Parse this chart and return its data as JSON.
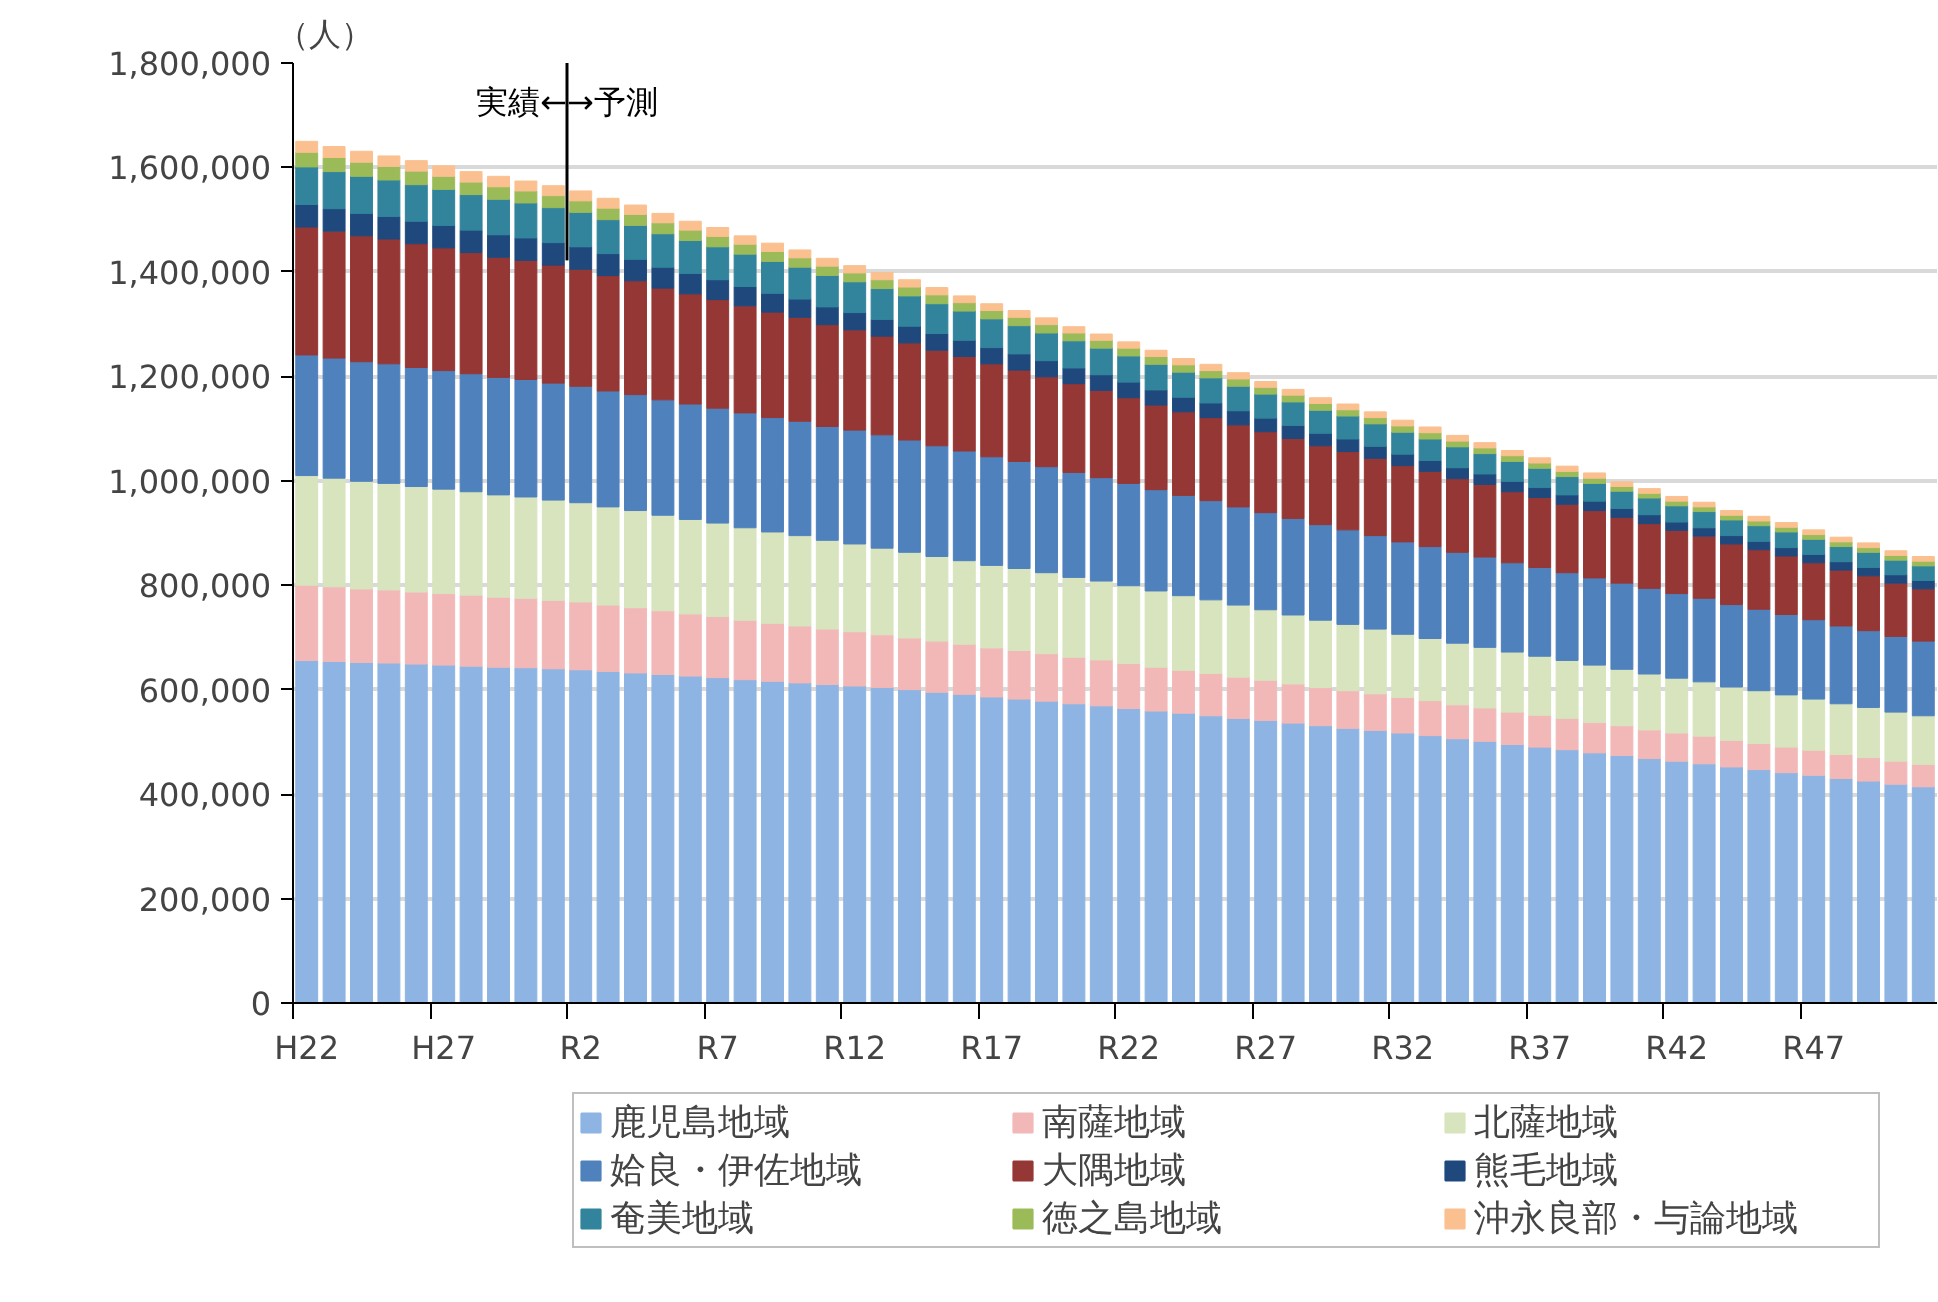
{
  "chart_data": {
    "type": "bar",
    "stacked": true,
    "ylabel": "（人）",
    "categories": [
      "H22",
      null,
      null,
      null,
      null,
      "H27",
      null,
      null,
      null,
      null,
      "R2",
      null,
      null,
      null,
      null,
      "R7",
      null,
      null,
      null,
      null,
      "R12",
      null,
      null,
      null,
      null,
      "R17",
      null,
      null,
      null,
      null,
      "R22",
      null,
      null,
      null,
      null,
      "R27",
      null,
      null,
      null,
      null,
      "R32",
      null,
      null,
      null,
      null,
      "R37",
      null,
      null,
      null,
      null,
      "R42",
      null,
      null,
      null,
      null,
      "R47",
      null,
      null,
      null,
      null
    ],
    "ylim": [
      0,
      1800000
    ],
    "yticks": [
      {
        "value": 0,
        "label": "0"
      },
      {
        "value": 200000,
        "label": "200,000"
      },
      {
        "value": 400000,
        "label": "400,000"
      },
      {
        "value": 600000,
        "label": "600,000"
      },
      {
        "value": 800000,
        "label": "800,000"
      },
      {
        "value": 1000000,
        "label": "1,000,000"
      },
      {
        "value": 1200000,
        "label": "1,200,000"
      },
      {
        "value": 1400000,
        "label": "1,400,000"
      },
      {
        "value": 1600000,
        "label": "1,600,000"
      },
      {
        "value": 1800000,
        "label": "1,800,000"
      }
    ],
    "grid": "y",
    "legend": "bottom",
    "ref_lines": [
      {
        "axis": "x",
        "value": "R2",
        "label": "実績←→予測",
        "color": "#000000"
      }
    ],
    "series": [
      {
        "name": "鹿児島地域",
        "color": "#8db4e2",
        "values": [
          656000,
          654000,
          652000,
          651000,
          649000,
          647000,
          645000,
          643000,
          642000,
          640000,
          638000,
          635000,
          632000,
          629000,
          626000,
          623000,
          619000,
          616000,
          613000,
          610000,
          607000,
          604000,
          600000,
          595000,
          591000,
          586000,
          582000,
          578000,
          573000,
          569000,
          564000,
          559000,
          555000,
          550000,
          545000,
          541000,
          536000,
          531000,
          526000,
          522000,
          517000,
          512000,
          506000,
          501000,
          495000,
          490000,
          485000,
          479000,
          474000,
          468000,
          463000,
          458000,
          452000,
          447000,
          441000,
          436000,
          430000,
          425000,
          419000,
          414000
        ]
      },
      {
        "name": "南薩地域",
        "color": "#f2b8b8",
        "values": [
          144000,
          143000,
          141000,
          140000,
          138000,
          137000,
          136000,
          134000,
          133000,
          131000,
          130000,
          127000,
          125000,
          122000,
          119000,
          117000,
          114000,
          111000,
          109000,
          106000,
          104000,
          101000,
          99000,
          98000,
          96000,
          94000,
          93000,
          91000,
          89000,
          88000,
          86000,
          84000,
          82000,
          81000,
          79000,
          77000,
          75000,
          73000,
          72000,
          70000,
          68000,
          67000,
          65000,
          64000,
          62000,
          61000,
          60000,
          58000,
          57000,
          55000,
          54000,
          53000,
          51000,
          50000,
          49000,
          48000,
          46000,
          45000,
          44000,
          43000
        ]
      },
      {
        "name": "北薩地域",
        "color": "#d7e4bd",
        "values": [
          210000,
          208000,
          206000,
          204000,
          202000,
          200000,
          198000,
          196000,
          194000,
          192000,
          190000,
          188000,
          186000,
          183000,
          181000,
          179000,
          177000,
          175000,
          173000,
          170000,
          168000,
          166000,
          164000,
          162000,
          160000,
          158000,
          157000,
          155000,
          153000,
          151000,
          149000,
          146000,
          143000,
          141000,
          138000,
          135000,
          132000,
          129000,
          127000,
          124000,
          121000,
          119000,
          118000,
          116000,
          115000,
          113000,
          111000,
          110000,
          108000,
          107000,
          105000,
          104000,
          102000,
          101000,
          100000,
          98000,
          97000,
          96000,
          94000,
          93000
        ]
      },
      {
        "name": "姶良・伊佐地域",
        "color": "#4f81bd",
        "values": [
          231000,
          230000,
          229000,
          229000,
          228000,
          227000,
          226000,
          225000,
          225000,
          224000,
          223000,
          222000,
          222000,
          221000,
          221000,
          220000,
          220000,
          219000,
          219000,
          218000,
          218000,
          217000,
          215000,
          212000,
          210000,
          208000,
          205000,
          203000,
          201000,
          198000,
          196000,
          194000,
          192000,
          190000,
          188000,
          186000,
          185000,
          183000,
          181000,
          179000,
          177000,
          176000,
          174000,
          173000,
          171000,
          170000,
          168000,
          167000,
          165000,
          164000,
          162000,
          160000,
          158000,
          156000,
          154000,
          152000,
          149000,
          147000,
          145000,
          143000
        ]
      },
      {
        "name": "大隅地域",
        "color": "#953735",
        "values": [
          245000,
          243000,
          241000,
          239000,
          237000,
          235000,
          232000,
          230000,
          228000,
          226000,
          224000,
          221000,
          218000,
          214000,
          211000,
          208000,
          205000,
          202000,
          199000,
          195000,
          192000,
          189000,
          186000,
          183000,
          181000,
          178000,
          175000,
          172000,
          170000,
          167000,
          164000,
          162000,
          160000,
          159000,
          157000,
          155000,
          153000,
          151000,
          150000,
          148000,
          146000,
          144000,
          141000,
          139000,
          136000,
          134000,
          131000,
          129000,
          126000,
          124000,
          121000,
          119000,
          116000,
          114000,
          112000,
          109000,
          107000,
          105000,
          102000,
          100000
        ]
      },
      {
        "name": "熊毛地域",
        "color": "#1f497d",
        "values": [
          43000,
          43000,
          43000,
          43000,
          43000,
          43000,
          43000,
          43000,
          43000,
          43000,
          43000,
          42000,
          41000,
          40000,
          39000,
          38000,
          37000,
          36000,
          35000,
          34000,
          33000,
          32000,
          32000,
          32000,
          31000,
          31000,
          31000,
          31000,
          30000,
          30000,
          30000,
          29000,
          28000,
          28000,
          27000,
          26000,
          25000,
          24000,
          24000,
          23000,
          22000,
          21000,
          21000,
          20000,
          20000,
          19000,
          18000,
          18000,
          17000,
          17000,
          16000,
          16000,
          16000,
          16000,
          16000,
          16000,
          16000,
          16000,
          16000,
          16000
        ]
      },
      {
        "name": "奄美地域",
        "color": "#31849b",
        "values": [
          72000,
          71000,
          71000,
          70000,
          70000,
          69000,
          68000,
          68000,
          67000,
          67000,
          66000,
          65000,
          65000,
          64000,
          63000,
          63000,
          62000,
          61000,
          61000,
          60000,
          59000,
          59000,
          58000,
          57000,
          56000,
          55000,
          54000,
          53000,
          52000,
          51000,
          50000,
          49000,
          48000,
          48000,
          47000,
          46000,
          45000,
          44000,
          44000,
          43000,
          42000,
          41000,
          40000,
          39000,
          38000,
          37000,
          35000,
          34000,
          33000,
          32000,
          31000,
          31000,
          30000,
          30000,
          30000,
          29000,
          29000,
          29000,
          28000,
          28000
        ]
      },
      {
        "name": "徳之島地域",
        "color": "#9bbb59",
        "values": [
          28000,
          27000,
          27000,
          26000,
          26000,
          25000,
          24000,
          24000,
          23000,
          23000,
          22000,
          22000,
          21000,
          21000,
          20000,
          20000,
          19000,
          19000,
          18000,
          18000,
          17000,
          17000,
          17000,
          17000,
          16000,
          16000,
          16000,
          16000,
          15000,
          15000,
          15000,
          15000,
          14000,
          14000,
          14000,
          13000,
          13000,
          13000,
          12000,
          12000,
          12000,
          12000,
          11000,
          11000,
          11000,
          10000,
          10000,
          10000,
          9000,
          9000,
          9000,
          9000,
          9000,
          9000,
          9000,
          9000,
          9000,
          9000,
          9000,
          9000
        ]
      },
      {
        "name": "沖永良部・与論地域",
        "color": "#fac090",
        "values": [
          21000,
          21000,
          21000,
          20000,
          20000,
          20000,
          20000,
          20000,
          19000,
          19000,
          19000,
          19000,
          18000,
          18000,
          17000,
          17000,
          16000,
          16000,
          15000,
          15000,
          14000,
          14000,
          14000,
          14000,
          13000,
          13000,
          13000,
          13000,
          12000,
          12000,
          12000,
          12000,
          12000,
          12000,
          12000,
          11000,
          11000,
          11000,
          11000,
          11000,
          11000,
          11000,
          11000,
          10000,
          10000,
          10000,
          10000,
          10000,
          9000,
          9000,
          9000,
          9000,
          9000,
          9000,
          9000,
          9000,
          9000,
          9000,
          9000,
          9000
        ]
      }
    ]
  }
}
